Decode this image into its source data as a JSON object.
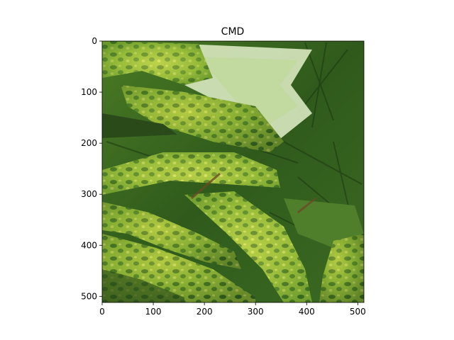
{
  "figure": {
    "title": "CMD"
  },
  "chart_data": {
    "type": "image",
    "title": "CMD",
    "xlabel": "",
    "ylabel": "",
    "image_size": [
      512,
      512
    ],
    "xlim": [
      0,
      512
    ],
    "ylim": [
      512,
      0
    ],
    "x_ticks": [
      0,
      100,
      200,
      300,
      400,
      500
    ],
    "y_ticks": [
      0,
      100,
      200,
      300,
      400,
      500
    ],
    "grid": false,
    "legend": "none",
    "colors": {
      "dark_green": "#1f3b17",
      "leaf_green": "#3f7a22",
      "mosaic_yellow": "#c8d64a",
      "pale_leaf": "#dbe9c2"
    }
  }
}
